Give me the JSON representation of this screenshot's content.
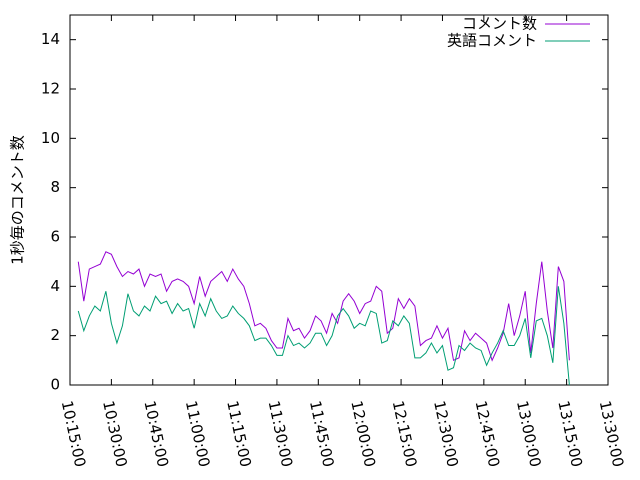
{
  "chart_data": {
    "type": "line",
    "ylabel": "1秒毎のコメント数",
    "x": [
      "10:18:00",
      "10:20:00",
      "10:22:00",
      "10:24:00",
      "10:26:00",
      "10:28:00",
      "10:30:00",
      "10:32:00",
      "10:34:00",
      "10:36:00",
      "10:38:00",
      "10:40:00",
      "10:42:00",
      "10:44:00",
      "10:46:00",
      "10:48:00",
      "10:50:00",
      "10:52:00",
      "10:54:00",
      "10:56:00",
      "10:58:00",
      "11:00:00",
      "11:02:00",
      "11:04:00",
      "11:06:00",
      "11:08:00",
      "11:10:00",
      "11:12:00",
      "11:14:00",
      "11:16:00",
      "11:18:00",
      "11:20:00",
      "11:22:00",
      "11:24:00",
      "11:26:00",
      "11:28:00",
      "11:30:00",
      "11:32:00",
      "11:34:00",
      "11:36:00",
      "11:38:00",
      "11:40:00",
      "11:42:00",
      "11:44:00",
      "11:46:00",
      "11:48:00",
      "11:50:00",
      "11:52:00",
      "11:54:00",
      "11:56:00",
      "11:58:00",
      "12:00:00",
      "12:02:00",
      "12:04:00",
      "12:06:00",
      "12:08:00",
      "12:10:00",
      "12:12:00",
      "12:14:00",
      "12:16:00",
      "12:18:00",
      "12:20:00",
      "12:22:00",
      "12:24:00",
      "12:26:00",
      "12:28:00",
      "12:30:00",
      "12:32:00",
      "12:34:00",
      "12:36:00",
      "12:38:00",
      "12:40:00",
      "12:42:00",
      "12:44:00",
      "12:46:00",
      "12:48:00",
      "12:50:00",
      "12:52:00",
      "12:54:00",
      "12:56:00",
      "12:58:00",
      "13:00:00",
      "13:02:00",
      "13:04:00",
      "13:06:00",
      "13:08:00",
      "13:10:00",
      "13:12:00",
      "13:14:00",
      "13:16:00"
    ],
    "series": [
      {
        "name": "コメント数",
        "color": "#9400d3",
        "values": [
          5.0,
          3.4,
          4.7,
          4.8,
          4.9,
          5.4,
          5.3,
          4.8,
          4.4,
          4.6,
          4.5,
          4.7,
          4.0,
          4.5,
          4.4,
          4.5,
          3.8,
          4.2,
          4.3,
          4.2,
          4.0,
          3.3,
          4.4,
          3.6,
          4.2,
          4.4,
          4.6,
          4.2,
          4.7,
          4.3,
          4.0,
          3.3,
          2.4,
          2.5,
          2.3,
          1.8,
          1.5,
          1.5,
          2.7,
          2.2,
          2.3,
          1.9,
          2.2,
          2.8,
          2.6,
          2.1,
          2.9,
          2.5,
          3.4,
          3.7,
          3.4,
          2.9,
          3.3,
          3.4,
          4.0,
          3.8,
          2.1,
          2.3,
          3.5,
          3.1,
          3.5,
          3.2,
          1.6,
          1.8,
          1.9,
          2.4,
          1.9,
          2.3,
          1.0,
          1.1,
          2.2,
          1.8,
          2.1,
          1.9,
          1.7,
          1.0,
          1.5,
          2.1,
          3.3,
          2.0,
          2.8,
          3.8,
          1.3,
          3.3,
          5.0,
          3.0,
          1.5,
          4.8,
          4.2,
          1.0
        ]
      },
      {
        "name": "英語コメント",
        "color": "#009e73",
        "values": [
          3.0,
          2.2,
          2.8,
          3.2,
          3.0,
          3.8,
          2.5,
          1.7,
          2.4,
          3.7,
          3.0,
          2.8,
          3.2,
          3.0,
          3.6,
          3.3,
          3.4,
          2.9,
          3.3,
          3.0,
          3.1,
          2.3,
          3.3,
          2.8,
          3.5,
          3.0,
          2.7,
          2.8,
          3.2,
          2.9,
          2.7,
          2.4,
          1.8,
          1.9,
          1.9,
          1.6,
          1.2,
          1.2,
          2.0,
          1.6,
          1.7,
          1.5,
          1.7,
          2.1,
          2.1,
          1.6,
          2.0,
          2.8,
          3.1,
          2.8,
          2.3,
          2.5,
          2.4,
          3.0,
          2.9,
          1.7,
          1.8,
          2.6,
          2.4,
          2.8,
          2.5,
          1.1,
          1.1,
          1.3,
          1.7,
          1.3,
          1.6,
          0.6,
          0.7,
          1.6,
          1.4,
          1.7,
          1.5,
          1.4,
          0.8,
          1.3,
          1.7,
          2.2,
          1.6,
          1.6,
          2.0,
          2.7,
          1.1,
          2.6,
          2.7,
          2.0,
          0.9,
          4.0,
          2.5,
          0.0
        ]
      }
    ],
    "xlim": [
      "10:15:00",
      "13:30:00"
    ],
    "xticks": [
      "10:15:00",
      "10:30:00",
      "10:45:00",
      "11:00:00",
      "11:15:00",
      "11:30:00",
      "11:45:00",
      "12:00:00",
      "12:15:00",
      "12:30:00",
      "12:45:00",
      "13:00:00",
      "13:15:00",
      "13:30:00"
    ],
    "ylim": [
      0,
      15
    ],
    "yticks": [
      0,
      2,
      4,
      6,
      8,
      10,
      12,
      14
    ],
    "legend": "top-right",
    "grid": false
  }
}
